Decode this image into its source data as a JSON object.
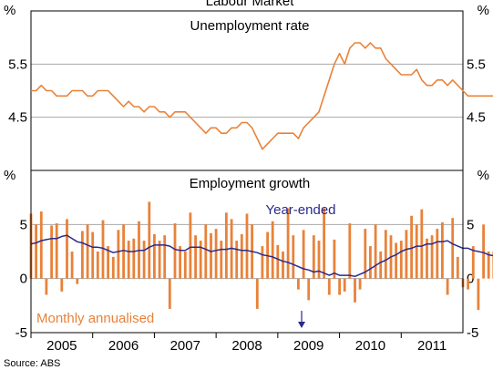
{
  "top_fragment": "Labour Market",
  "source": "Source: ABS",
  "colors": {
    "orange": "#E8823A",
    "navy": "#2A2A8C",
    "grid": "#A8A8A8"
  },
  "chart_data": [
    {
      "type": "line",
      "title": "Unemployment rate",
      "unit_left": "%",
      "unit_right": "%",
      "ylim": [
        3.5,
        6.5
      ],
      "yticks": [
        {
          "value": 4.5,
          "label": "4.5"
        },
        {
          "value": 5.5,
          "label": "5.5"
        }
      ],
      "grid": true,
      "x_start": 2004.5,
      "x_step": 0.0833333,
      "series": [
        {
          "values": [
            5.0,
            5.0,
            5.1,
            5.0,
            5.0,
            4.9,
            4.9,
            4.9,
            5.0,
            5.0,
            5.0,
            4.9,
            4.9,
            5.0,
            5.0,
            5.0,
            4.9,
            4.8,
            4.7,
            4.8,
            4.7,
            4.7,
            4.6,
            4.7,
            4.7,
            4.6,
            4.6,
            4.5,
            4.6,
            4.6,
            4.6,
            4.5,
            4.4,
            4.3,
            4.2,
            4.3,
            4.3,
            4.2,
            4.2,
            4.3,
            4.3,
            4.4,
            4.4,
            4.3,
            4.1,
            3.9,
            4.0,
            4.1,
            4.2,
            4.2,
            4.2,
            4.2,
            4.1,
            4.3,
            4.4,
            4.5,
            4.6,
            4.9,
            5.2,
            5.5,
            5.7,
            5.5,
            5.8,
            5.9,
            5.9,
            5.8,
            5.9,
            5.8,
            5.8,
            5.6,
            5.5,
            5.4,
            5.3,
            5.3,
            5.3,
            5.4,
            5.2,
            5.1,
            5.1,
            5.2,
            5.2,
            5.1,
            5.2,
            5.1,
            5.0,
            4.9,
            4.9,
            4.9,
            4.9,
            4.9,
            4.9
          ]
        }
      ]
    },
    {
      "type": "bar",
      "title": "Employment growth",
      "unit_left": "%",
      "unit_right": "%",
      "ylim": [
        -5,
        10
      ],
      "yticks": [
        {
          "value": 5,
          "label": "5"
        },
        {
          "value": 0,
          "label": "0"
        },
        {
          "value": -5,
          "label": "-5"
        }
      ],
      "grid": true,
      "x_start": 2004.5,
      "x_step": 0.0833333,
      "x_ticks": [
        "2005",
        "2006",
        "2007",
        "2008",
        "2009",
        "2010",
        "2011"
      ],
      "x_tick_positions": [
        2005,
        2006,
        2007,
        2008,
        2009,
        2010,
        2011
      ],
      "series": [
        {
          "name": "Monthly annualised",
          "kind": "bar",
          "values": [
            6.0,
            5.0,
            6.2,
            -1.5,
            4.9,
            5.1,
            -1.2,
            5.5,
            2.5,
            -0.5,
            4.4,
            5.0,
            4.3,
            2.5,
            5.4,
            3.0,
            2.0,
            4.5,
            5.0,
            3.5,
            3.7,
            5.3,
            3.5,
            7.1,
            4.1,
            3.5,
            4.0,
            -2.8,
            5.1,
            3.0,
            2.5,
            6.1,
            4.0,
            3.5,
            5.0,
            4.2,
            4.6,
            3.5,
            6.1,
            5.5,
            3.5,
            4.1,
            6.0,
            5.0,
            -2.8,
            3.0,
            4.3,
            5.3,
            3.1,
            2.5,
            6.5,
            4.0,
            -1.0,
            4.5,
            -2.0,
            4.0,
            3.5,
            6.5,
            -1.5,
            3.6,
            -1.5,
            -1.2,
            5.1,
            -2.2,
            -1.0,
            4.6,
            3.0,
            5.0,
            2.5,
            4.5,
            4.0,
            3.3,
            3.5,
            4.5,
            5.8,
            5.0,
            6.4,
            3.7,
            4.0,
            4.6,
            5.2,
            -1.5,
            5.6,
            2.0,
            -0.8,
            -1.0,
            3.0,
            -2.9,
            5.0,
            2.5,
            2.5
          ]
        },
        {
          "name": "Year-ended",
          "kind": "line",
          "values": [
            3.2,
            3.3,
            3.5,
            3.6,
            3.7,
            3.7,
            3.9,
            4.0,
            3.7,
            3.4,
            3.3,
            3.1,
            2.9,
            2.9,
            2.8,
            2.6,
            2.4,
            2.5,
            2.6,
            2.5,
            2.5,
            2.6,
            2.6,
            2.9,
            3.1,
            3.1,
            3.1,
            3.0,
            2.7,
            2.6,
            2.6,
            2.9,
            2.9,
            2.9,
            2.7,
            2.5,
            2.6,
            2.7,
            2.7,
            2.8,
            2.7,
            2.6,
            2.6,
            2.5,
            2.4,
            2.2,
            2.1,
            2.0,
            1.8,
            1.6,
            1.5,
            1.3,
            1.1,
            0.9,
            0.8,
            0.6,
            0.7,
            0.5,
            0.3,
            0.5,
            0.3,
            0.3,
            0.3,
            0.2,
            0.4,
            0.6,
            0.9,
            1.2,
            1.5,
            1.7,
            2.0,
            2.2,
            2.5,
            2.7,
            2.8,
            3.0,
            3.0,
            3.2,
            3.2,
            3.4,
            3.4,
            3.5,
            3.2,
            3.0,
            2.8,
            2.8,
            2.6,
            2.5,
            2.4,
            2.2,
            2.1
          ]
        }
      ]
    }
  ]
}
